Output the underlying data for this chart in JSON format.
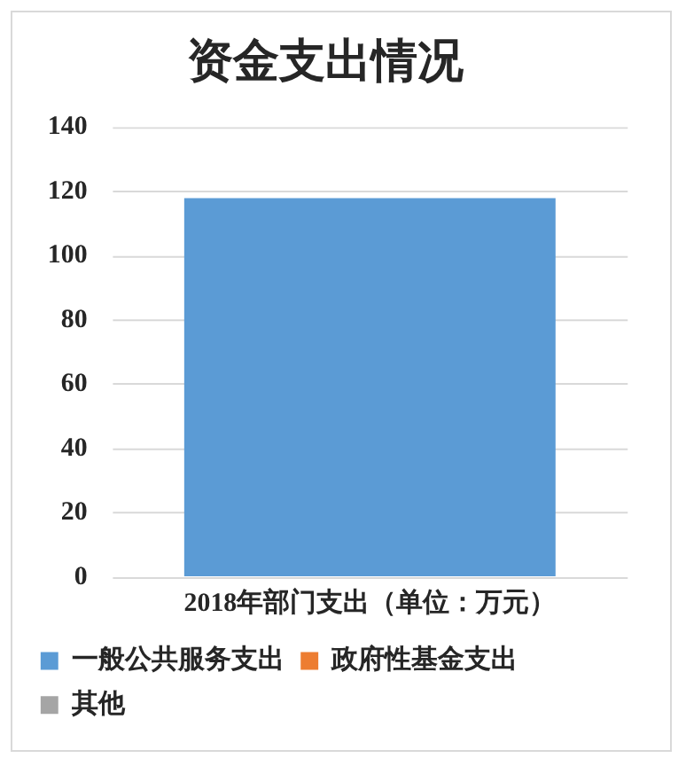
{
  "chart_data": {
    "type": "bar",
    "title": "资金支出情况",
    "categories": [
      "2018年部门支出（单位：万元）"
    ],
    "series": [
      {
        "name": "一般公共服务支出",
        "color": "#5b9bd5",
        "values": [
          118
        ]
      },
      {
        "name": "政府性基金支出",
        "color": "#ed7d31",
        "values": [
          null
        ]
      },
      {
        "name": "其他",
        "color": "#a5a5a5",
        "values": [
          null
        ]
      }
    ],
    "ylim": [
      0,
      140
    ],
    "yticks": [
      0,
      20,
      40,
      60,
      80,
      100,
      120,
      140
    ],
    "grid": "y",
    "legend": "bottom"
  }
}
